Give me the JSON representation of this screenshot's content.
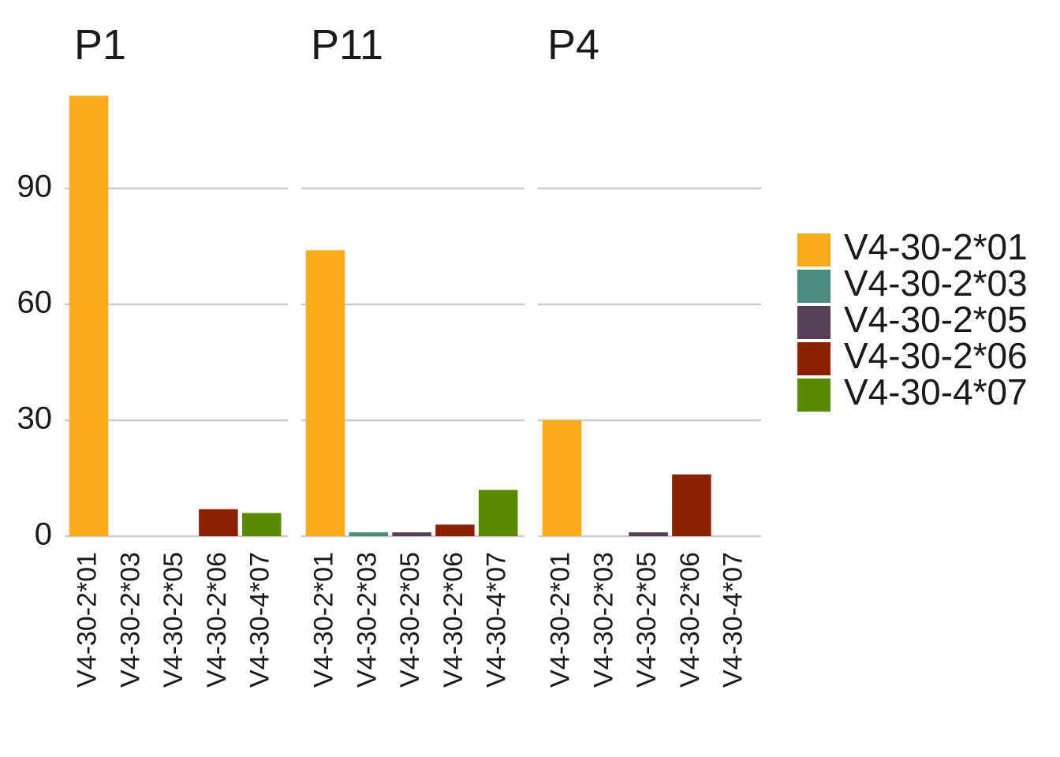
{
  "chart_data": {
    "type": "bar",
    "facets": [
      {
        "title": "P1",
        "values": [
          114,
          0,
          0,
          7,
          6
        ]
      },
      {
        "title": "P11",
        "values": [
          74,
          1,
          1,
          3,
          12
        ]
      },
      {
        "title": "P4",
        "values": [
          30,
          0,
          1,
          16,
          0
        ]
      }
    ],
    "categories": [
      "V4-30-2*01",
      "V4-30-2*03",
      "V4-30-2*05",
      "V4-30-2*06",
      "V4-30-4*07"
    ],
    "series_colors": [
      "#F9AB1B",
      "#4A8C7E",
      "#573F55",
      "#8B2102",
      "#5A8A03"
    ],
    "yticks": [
      0,
      30,
      60,
      90
    ],
    "ylim": [
      0,
      120
    ],
    "grid": true,
    "legend": {
      "position": "right",
      "entries": [
        "V4-30-2*01",
        "V4-30-2*03",
        "V4-30-2*05",
        "V4-30-2*06",
        "V4-30-4*07"
      ]
    }
  }
}
